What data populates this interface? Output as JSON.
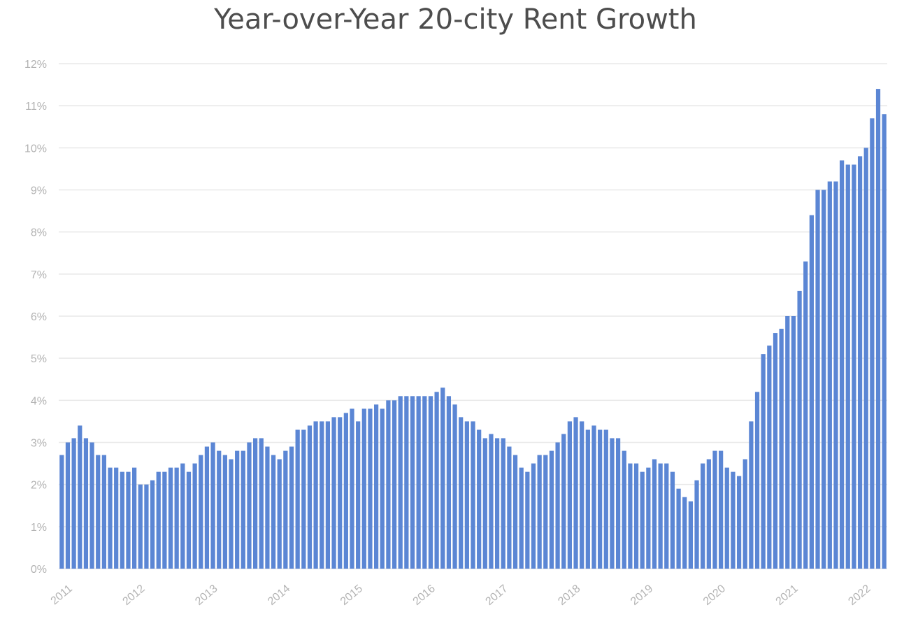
{
  "chart_data": {
    "type": "bar",
    "title": "Year-over-Year 20-city Rent Growth",
    "xlabel": "",
    "ylabel": "",
    "ylim": [
      0,
      12
    ],
    "y_ticks": [
      "0%",
      "1%",
      "2%",
      "3%",
      "4%",
      "5%",
      "6%",
      "7%",
      "8%",
      "9%",
      "10%",
      "11%",
      "12%"
    ],
    "x_ticks": [
      "2011",
      "2012",
      "2013",
      "2014",
      "2015",
      "2016",
      "2017",
      "2018",
      "2019",
      "2020",
      "2021",
      "2022"
    ],
    "x_start": "2011-01",
    "frequency": "monthly",
    "grid": true,
    "legend": "none",
    "bar_color": "#5b86d4",
    "values": [
      2.7,
      3.0,
      3.1,
      3.4,
      3.1,
      3.0,
      2.7,
      2.7,
      2.4,
      2.4,
      2.3,
      2.3,
      2.4,
      2.0,
      2.0,
      2.1,
      2.3,
      2.3,
      2.4,
      2.4,
      2.5,
      2.3,
      2.5,
      2.7,
      2.9,
      3.0,
      2.8,
      2.7,
      2.6,
      2.8,
      2.8,
      3.0,
      3.1,
      3.1,
      2.9,
      2.7,
      2.6,
      2.8,
      2.9,
      3.3,
      3.3,
      3.4,
      3.5,
      3.5,
      3.5,
      3.6,
      3.6,
      3.7,
      3.8,
      3.5,
      3.8,
      3.8,
      3.9,
      3.8,
      4.0,
      4.0,
      4.1,
      4.1,
      4.1,
      4.1,
      4.1,
      4.1,
      4.2,
      4.3,
      4.1,
      3.9,
      3.6,
      3.5,
      3.5,
      3.3,
      3.1,
      3.2,
      3.1,
      3.1,
      2.9,
      2.7,
      2.4,
      2.3,
      2.5,
      2.7,
      2.7,
      2.8,
      3.0,
      3.2,
      3.5,
      3.6,
      3.5,
      3.3,
      3.4,
      3.3,
      3.3,
      3.1,
      3.1,
      2.8,
      2.5,
      2.5,
      2.3,
      2.4,
      2.6,
      2.5,
      2.5,
      2.3,
      1.9,
      1.7,
      1.6,
      2.1,
      2.5,
      2.6,
      2.8,
      2.8,
      2.4,
      2.3,
      2.2,
      2.6,
      3.5,
      4.2,
      5.1,
      5.3,
      5.6,
      5.7,
      6.0,
      6.0,
      6.6,
      7.3,
      8.4,
      9.0,
      9.0,
      9.2,
      9.2,
      9.7,
      9.6,
      9.6,
      9.8,
      10.0,
      10.7,
      11.4,
      10.8
    ]
  }
}
